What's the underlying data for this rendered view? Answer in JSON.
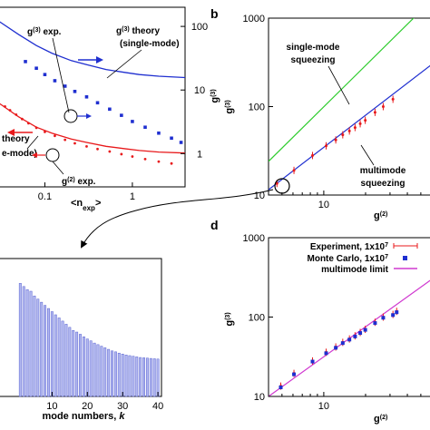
{
  "figure": {
    "panel_labels": [
      "b",
      "d"
    ]
  },
  "colors": {
    "blue": "#1f2fd0",
    "red": "#e8191b",
    "green": "#2ecc2e",
    "magenta": "#d03ad0",
    "bar_fill": "#b3b8f0",
    "bar_stroke": "#5560d0",
    "axis": "#000000"
  },
  "chart_data": [
    {
      "panel": "a",
      "type": "scatter",
      "xscale": "log",
      "yscale": "log",
      "xlim": [
        0.03,
        4
      ],
      "ylim": [
        0.3,
        200
      ],
      "xticks": [
        {
          "v": 0.1,
          "label": "0.1"
        },
        {
          "v": 1,
          "label": "1"
        }
      ],
      "yticks_right": [
        {
          "v": 1,
          "label": "1"
        },
        {
          "v": 10,
          "label": "10"
        },
        {
          "v": 100,
          "label": "100"
        }
      ],
      "xlabel": {
        "main": "<n",
        "sub": "exp",
        "tail": ">"
      },
      "ylabel_right": {
        "main": "g",
        "sup": "(3)"
      },
      "annotations": [
        {
          "pre": "g",
          "sup": "(3)",
          "post": " exp.",
          "pos": "upper"
        },
        {
          "pre": "g",
          "sup": "(3)",
          "post": " theory",
          "line2": "(single-mode)",
          "pos": "upper-right"
        },
        {
          "pre": "",
          "sup": "",
          "post": "theory",
          "line2": "e-mode)",
          "pos": "lower-left"
        },
        {
          "pre": "g",
          "sup": "(2)",
          "post": " exp.",
          "pos": "lower"
        }
      ],
      "series": [
        {
          "color_key": "blue",
          "kind": "line",
          "x": [
            0.03,
            0.05,
            0.08,
            0.12,
            0.2,
            0.3,
            0.5,
            0.8,
            1.2,
            2,
            4
          ],
          "y": [
            120,
            75,
            50,
            38,
            29,
            25,
            21,
            19,
            17.5,
            16.5,
            15.7
          ]
        },
        {
          "color_key": "blue",
          "kind": "points",
          "x": [
            0.06,
            0.08,
            0.1,
            0.13,
            0.17,
            0.22,
            0.3,
            0.4,
            0.55,
            0.75,
            1.0,
            1.4,
            2.0,
            2.8,
            3.6
          ],
          "y": [
            28,
            22,
            17.5,
            14,
            11.5,
            9.5,
            7.8,
            6.3,
            5,
            4,
            3.2,
            2.6,
            2.1,
            1.75,
            1.5
          ]
        },
        {
          "color_key": "red",
          "kind": "line",
          "x": [
            0.03,
            0.05,
            0.08,
            0.12,
            0.2,
            0.3,
            0.5,
            0.8,
            1.2,
            2,
            4
          ],
          "y": [
            6.2,
            3.8,
            2.6,
            2.1,
            1.7,
            1.5,
            1.3,
            1.2,
            1.12,
            1.06,
            1.02
          ]
        },
        {
          "color_key": "red",
          "kind": "points",
          "x": [
            0.03,
            0.035,
            0.04,
            0.047,
            0.055,
            0.065,
            0.08,
            0.1,
            0.13,
            0.17,
            0.22,
            0.3,
            0.4,
            0.55,
            0.75,
            1.0,
            1.4,
            2.0,
            2.8
          ],
          "y": [
            6.2,
            5.5,
            4.8,
            4.1,
            3.5,
            3.0,
            2.55,
            2.2,
            1.9,
            1.65,
            1.45,
            1.3,
            1.18,
            1.08,
            0.98,
            0.9,
            0.82,
            0.75,
            0.7
          ]
        }
      ]
    },
    {
      "panel": "b",
      "type": "line",
      "xscale": "log",
      "yscale": "log",
      "xlim": [
        4,
        60
      ],
      "ylim": [
        10,
        1000
      ],
      "xticks": [
        {
          "v": 10,
          "label": "10"
        }
      ],
      "yticks": [
        {
          "v": 10,
          "label": "10"
        },
        {
          "v": 100,
          "label": "100"
        },
        {
          "v": 1000,
          "label": "1000"
        }
      ],
      "xlabel": {
        "main": "g",
        "sup": "(2)"
      },
      "ylabel": {
        "main": "g",
        "sup": "(3)"
      },
      "annotations": [
        {
          "text": "single-mode",
          "line2": "squeezing"
        },
        {
          "text": "multimode",
          "line2": "squeezing"
        }
      ],
      "series": [
        {
          "color_key": "green",
          "kind": "line",
          "x": [
            4,
            60
          ],
          "y": [
            24,
            1600
          ]
        },
        {
          "color_key": "blue",
          "kind": "line",
          "x": [
            4,
            60
          ],
          "y": [
            11.5,
            300
          ]
        },
        {
          "color_key": "red",
          "kind": "errpoints",
          "x": [
            4.6,
            6.1,
            8.3,
            10.4,
            12.2,
            13.7,
            15.3,
            16.8,
            18.3,
            19.9,
            23.4,
            26.8,
            31.5
          ],
          "y": [
            13.5,
            19,
            28,
            36,
            42,
            48,
            53,
            58,
            64,
            70,
            86,
            100,
            121
          ]
        }
      ]
    },
    {
      "panel": "c",
      "type": "bar",
      "categories_range": [
        1,
        40
      ],
      "values_rel": [
        0.36,
        0.35,
        0.34,
        0.335,
        0.32,
        0.31,
        0.3,
        0.29,
        0.28,
        0.27,
        0.26,
        0.25,
        0.24,
        0.23,
        0.22,
        0.21,
        0.205,
        0.198,
        0.19,
        0.183,
        0.177,
        0.17,
        0.165,
        0.16,
        0.155,
        0.15,
        0.145,
        0.142,
        0.138,
        0.135,
        0.132,
        0.13,
        0.128,
        0.126,
        0.124,
        0.123,
        0.122,
        0.121,
        0.12,
        0.119
      ],
      "xlim": [
        -5,
        41
      ],
      "xticks": [
        {
          "v": 10,
          "label": "10"
        },
        {
          "v": 20,
          "label": "20"
        },
        {
          "v": 30,
          "label": "30"
        },
        {
          "v": 40,
          "label": "40"
        }
      ],
      "xlabel": "mode numbers, ",
      "xlabel_k": "k"
    },
    {
      "panel": "d",
      "type": "scatter",
      "xscale": "log",
      "yscale": "log",
      "xlim": [
        4,
        60
      ],
      "ylim": [
        10,
        1000
      ],
      "xticks": [
        {
          "v": 10,
          "label": "10"
        }
      ],
      "yticks": [
        {
          "v": 10,
          "label": "10"
        },
        {
          "v": 100,
          "label": "100"
        },
        {
          "v": 1000,
          "label": "1000"
        }
      ],
      "xlabel": {
        "main": "g",
        "sup": "(2)"
      },
      "ylabel": {
        "main": "g",
        "sup": "(3)"
      },
      "legend": [
        {
          "label": "Experiment, 1x10",
          "sup": "7",
          "color_key": "red",
          "marker": "errbar"
        },
        {
          "label": "Monte Carlo, 1x10",
          "sup": "7",
          "color_key": "blue",
          "marker": "square"
        },
        {
          "label": "multimode limit",
          "color_key": "magenta",
          "marker": "line"
        }
      ],
      "series": [
        {
          "color_key": "magenta",
          "kind": "line",
          "x": [
            4,
            60
          ],
          "y": [
            10,
            300
          ]
        },
        {
          "color_key": "red",
          "kind": "errpoints",
          "x": [
            4.9,
            6.1,
            8.3,
            10.4,
            12.2,
            13.7,
            15.3,
            16.8,
            18.3,
            19.9,
            23.4,
            26.8,
            31.5,
            33.5
          ],
          "y": [
            13.5,
            19.5,
            28,
            36,
            42,
            48,
            53,
            58,
            64,
            70,
            86,
            100,
            108,
            118
          ]
        },
        {
          "color_key": "blue",
          "kind": "squares",
          "x": [
            4.9,
            6.1,
            8.3,
            10.4,
            12.2,
            13.7,
            15.3,
            16.8,
            18.3,
            19.9,
            23.4,
            26.8,
            31.5,
            33.5
          ],
          "y": [
            13,
            19,
            27.5,
            35,
            41,
            47,
            52,
            57,
            63,
            69,
            84,
            98,
            106,
            115
          ]
        }
      ]
    }
  ]
}
